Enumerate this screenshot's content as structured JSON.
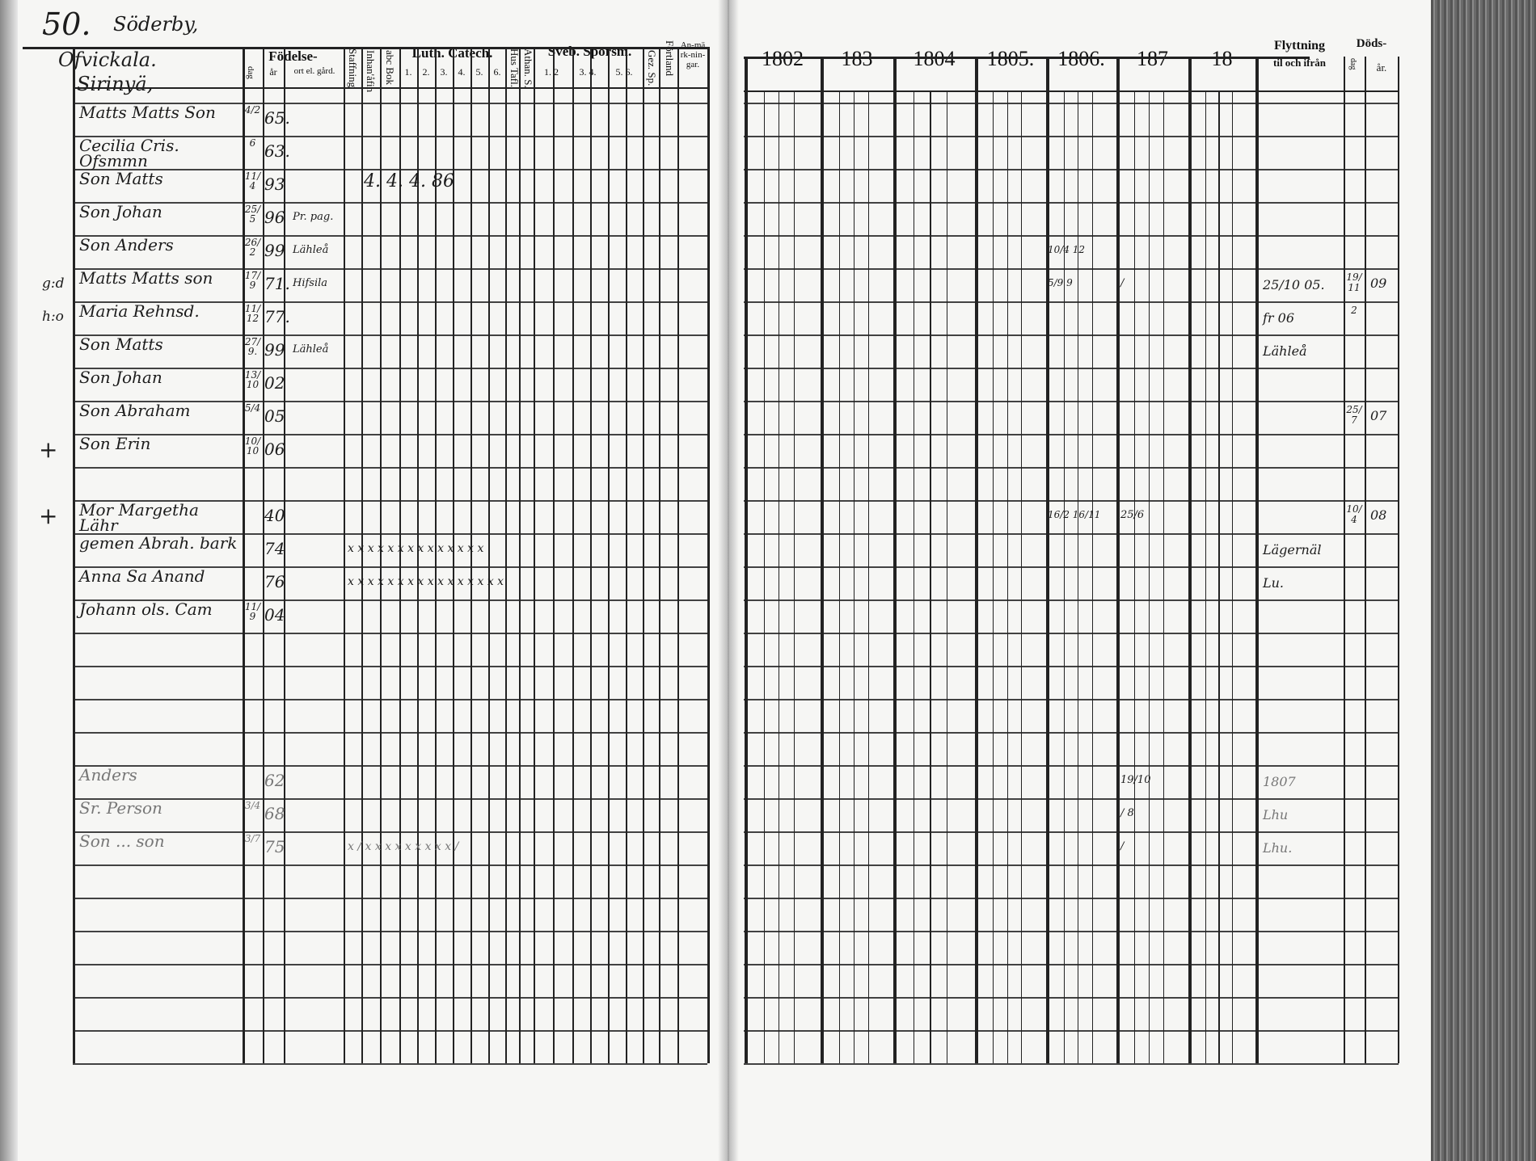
{
  "page": {
    "number": "50.",
    "village": "Söderby,"
  },
  "left_header": {
    "farm_name_1": "Ofvickala.",
    "farm_name_2": "Sirinyä,",
    "fodelse": "Födelse-",
    "dag": "dag",
    "ar": "år",
    "ort": "ort el. gård.",
    "staffning": "Staffning",
    "inhanafin": "Inhan'åfin",
    "abc_bok": "abc Bok",
    "luth_catech": "Luth. Catech.",
    "luth_cols": [
      "1.",
      "2.",
      "3.",
      "4.",
      "5.",
      "6."
    ],
    "hus_tafl": "Hus Tafl.",
    "athan_s": "Athan. S.",
    "sveb_sporsm": "Sveb. Spörsm.",
    "sveb_cols": [
      "1. 2",
      "3. 4.",
      "5. 6."
    ],
    "gez_sp": "Gez. Sp.",
    "fortland": "Förtland",
    "anmarkningar": "An-märk-nin-gar."
  },
  "right_header": {
    "years": [
      "1802",
      "183",
      "1804",
      "1805.",
      "1806.",
      "187",
      "18"
    ],
    "flyttning": "Flyttning",
    "flyttning_sub": "til och ifrån",
    "dods": "Döds-",
    "dods_dag": "dag",
    "dods_ar": "år."
  },
  "rows": [
    {
      "name": "Matts Matts Son",
      "dag": "4/2",
      "ar": "65."
    },
    {
      "name": "Cecilia Cris. Ofsmmn",
      "dag": "6",
      "ar": "63."
    },
    {
      "name": "Son Matts",
      "dag": "11/4",
      "ar": "93",
      "ort": "",
      "mid": "4. 4. 4. 86"
    },
    {
      "name": "Son Johan",
      "dag": "25/5",
      "ar": "96",
      "ort": "Pr. pag."
    },
    {
      "name": "Son Anders",
      "dag": "26/2",
      "ar": "99",
      "ort": "Lähleå",
      "y1806": "10/4 12"
    },
    {
      "name": "Matts Matts son",
      "prefix": "g:d",
      "dag": "17/9",
      "ar": "71.",
      "ort": "Hifsila",
      "y1806": "5/9 9",
      "y187": "/",
      "flytt": "25/10 05.",
      "dod_dag": "19/11",
      "dod_ar": "09"
    },
    {
      "name": "Maria Rehnsd.",
      "prefix": "h:o",
      "dag": "11/12",
      "ar": "77.",
      "flytt": "fr 06",
      "dod_dag": "2"
    },
    {
      "name": "Son Matts",
      "dag": "27/9.",
      "ar": "99",
      "ort": "Lähleå",
      "flytt": "Lähleå"
    },
    {
      "name": "Son Johan",
      "dag": "13/10",
      "ar": "02"
    },
    {
      "name": "Son Abraham",
      "dag": "5/4",
      "ar": "05",
      "dod_dag": "25/7",
      "dod_ar": "07"
    },
    {
      "name": "Son Erin",
      "mark": "+",
      "dag": "10/10",
      "ar": "06"
    },
    {},
    {
      "name": "Mor Margetha Lähr",
      "mark": "+",
      "ar": "40",
      "y1806": "16/2 16/11",
      "y187": "25/6",
      "dod_dag": "10/4",
      "dod_ar": "08"
    },
    {
      "name": "gemen Abrah. bark",
      "ar": "74",
      "checks": "x x x x x x     x x x x x x x x",
      "flytt": "Lägernäl"
    },
    {
      "name": "Anna Sa Anand",
      "ar": "76",
      "checks": "x x x x x x x x x x x x x x x x",
      "flytt": "Lu."
    },
    {
      "name": "Johann ols. Cam",
      "dag": "11/9",
      "ar": "04"
    },
    {},
    {},
    {},
    {},
    {
      "name": "Anders",
      "pale": true,
      "ar": "62",
      "y187": "19/10",
      "flytt": "1807"
    },
    {
      "name": "Sr. Person",
      "pale": true,
      "dag": "3/4",
      "ar": "68",
      "y187": "/ 8",
      "flytt": "Lhu"
    },
    {
      "name": "Son ... son",
      "pale": true,
      "dag": "3/7",
      "ar": "75",
      "y187": "/",
      "checks": "x / x x x x x x x x x /",
      "flytt": "Lhu."
    },
    {},
    {},
    {},
    {},
    {},
    {}
  ]
}
